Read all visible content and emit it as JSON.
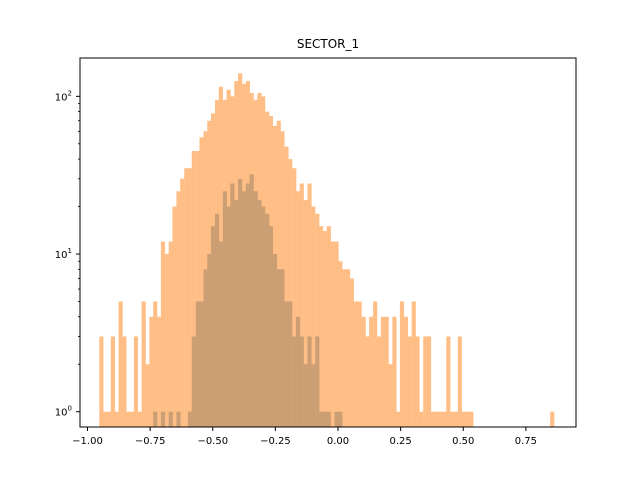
{
  "chart_data": {
    "type": "bar",
    "title": "SECTOR_1",
    "xlabel": "",
    "ylabel": "",
    "yscale": "log",
    "xlim": [
      -1.03,
      0.95
    ],
    "ylim": [
      0.8,
      175
    ],
    "grid": false,
    "x_ticks": [
      {
        "value": -1.0,
        "label": "−1.00"
      },
      {
        "value": -0.75,
        "label": "−0.75"
      },
      {
        "value": -0.5,
        "label": "−0.50"
      },
      {
        "value": -0.25,
        "label": "−0.25"
      },
      {
        "value": 0.0,
        "label": "0.00"
      },
      {
        "value": 0.25,
        "label": "0.25"
      },
      {
        "value": 0.5,
        "label": "0.50"
      },
      {
        "value": 0.75,
        "label": "0.75"
      }
    ],
    "y_ticks": [
      {
        "value": 1,
        "base": "10",
        "exp": "0"
      },
      {
        "value": 10,
        "base": "10",
        "exp": "1"
      },
      {
        "value": 100,
        "base": "10",
        "exp": "2"
      }
    ],
    "colors": {
      "series_1": "#ffbe86",
      "series_2": "#cb9e74"
    },
    "series": [
      {
        "bins": [
          [
            -0.953,
            3
          ],
          [
            -0.938,
            1
          ],
          [
            -0.922,
            1
          ],
          [
            -0.907,
            3
          ],
          [
            -0.892,
            1
          ],
          [
            -0.876,
            5
          ],
          [
            -0.861,
            3
          ],
          [
            -0.845,
            1
          ],
          [
            -0.83,
            1
          ],
          [
            -0.815,
            3
          ],
          [
            -0.799,
            1
          ],
          [
            -0.784,
            5
          ],
          [
            -0.768,
            2
          ],
          [
            -0.753,
            4
          ],
          [
            -0.738,
            5
          ],
          [
            -0.722,
            4
          ],
          [
            -0.707,
            12
          ],
          [
            -0.691,
            10
          ],
          [
            -0.676,
            12
          ],
          [
            -0.661,
            20
          ],
          [
            -0.645,
            25
          ],
          [
            -0.63,
            30
          ],
          [
            -0.614,
            35
          ],
          [
            -0.599,
            35
          ],
          [
            -0.584,
            45
          ],
          [
            -0.568,
            45
          ],
          [
            -0.553,
            55
          ],
          [
            -0.537,
            60
          ],
          [
            -0.522,
            70
          ],
          [
            -0.507,
            78
          ],
          [
            -0.491,
            95
          ],
          [
            -0.476,
            115
          ],
          [
            -0.46,
            95
          ],
          [
            -0.445,
            110
          ],
          [
            -0.43,
            100
          ],
          [
            -0.414,
            125
          ],
          [
            -0.399,
            140
          ],
          [
            -0.384,
            120
          ],
          [
            -0.368,
            125
          ],
          [
            -0.353,
            105
          ],
          [
            -0.337,
            95
          ],
          [
            -0.322,
            105
          ],
          [
            -0.307,
            100
          ],
          [
            -0.291,
            80
          ],
          [
            -0.276,
            75
          ],
          [
            -0.26,
            65
          ],
          [
            -0.245,
            70
          ],
          [
            -0.23,
            60
          ],
          [
            -0.214,
            48
          ],
          [
            -0.199,
            40
          ],
          [
            -0.183,
            35
          ],
          [
            -0.168,
            25
          ],
          [
            -0.153,
            28
          ],
          [
            -0.137,
            22
          ],
          [
            -0.122,
            28
          ],
          [
            -0.107,
            20
          ],
          [
            -0.091,
            18
          ],
          [
            -0.076,
            15
          ],
          [
            -0.06,
            14
          ],
          [
            -0.045,
            15
          ],
          [
            -0.03,
            12
          ],
          [
            -0.014,
            12
          ],
          [
            0.001,
            9
          ],
          [
            0.017,
            8
          ],
          [
            0.032,
            8
          ],
          [
            0.047,
            7
          ],
          [
            0.063,
            5
          ],
          [
            0.078,
            5
          ],
          [
            0.094,
            4
          ],
          [
            0.109,
            3
          ],
          [
            0.124,
            4
          ],
          [
            0.14,
            5
          ],
          [
            0.155,
            3
          ],
          [
            0.171,
            4
          ],
          [
            0.186,
            4
          ],
          [
            0.201,
            2
          ],
          [
            0.217,
            4
          ],
          [
            0.232,
            1
          ],
          [
            0.247,
            5
          ],
          [
            0.263,
            4
          ],
          [
            0.278,
            3
          ],
          [
            0.294,
            5
          ],
          [
            0.309,
            3
          ],
          [
            0.324,
            1
          ],
          [
            0.34,
            3
          ],
          [
            0.355,
            3
          ],
          [
            0.371,
            1
          ],
          [
            0.386,
            1
          ],
          [
            0.401,
            1
          ],
          [
            0.417,
            1
          ],
          [
            0.432,
            3
          ],
          [
            0.447,
            1
          ],
          [
            0.463,
            1
          ],
          [
            0.478,
            3
          ],
          [
            0.494,
            1
          ],
          [
            0.509,
            1
          ],
          [
            0.524,
            1
          ],
          [
            0.847,
            1
          ]
        ]
      },
      {
        "bins": [
          [
            -0.738,
            1
          ],
          [
            -0.707,
            1
          ],
          [
            -0.676,
            1
          ],
          [
            -0.645,
            1
          ],
          [
            -0.599,
            1
          ],
          [
            -0.584,
            3
          ],
          [
            -0.568,
            5
          ],
          [
            -0.553,
            5
          ],
          [
            -0.537,
            8
          ],
          [
            -0.522,
            10
          ],
          [
            -0.507,
            15
          ],
          [
            -0.491,
            18
          ],
          [
            -0.476,
            12
          ],
          [
            -0.46,
            25
          ],
          [
            -0.445,
            20
          ],
          [
            -0.43,
            28
          ],
          [
            -0.414,
            22
          ],
          [
            -0.399,
            30
          ],
          [
            -0.384,
            25
          ],
          [
            -0.368,
            28
          ],
          [
            -0.353,
            32
          ],
          [
            -0.337,
            25
          ],
          [
            -0.322,
            22
          ],
          [
            -0.307,
            20
          ],
          [
            -0.291,
            18
          ],
          [
            -0.276,
            15
          ],
          [
            -0.26,
            10
          ],
          [
            -0.245,
            8
          ],
          [
            -0.23,
            8
          ],
          [
            -0.214,
            5
          ],
          [
            -0.199,
            5
          ],
          [
            -0.183,
            3
          ],
          [
            -0.168,
            4
          ],
          [
            -0.153,
            3
          ],
          [
            -0.137,
            2
          ],
          [
            -0.122,
            3
          ],
          [
            -0.107,
            2
          ],
          [
            -0.091,
            3
          ],
          [
            -0.076,
            1
          ],
          [
            -0.06,
            1
          ],
          [
            -0.045,
            1
          ],
          [
            -0.014,
            1
          ],
          [
            0.001,
            1
          ]
        ]
      }
    ]
  }
}
